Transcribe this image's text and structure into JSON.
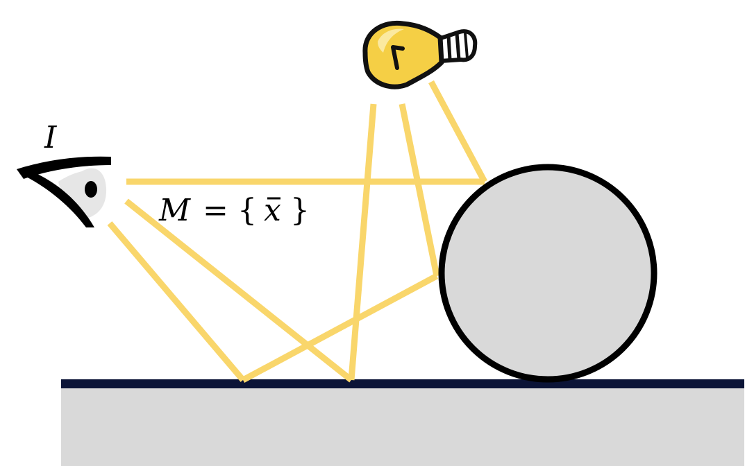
{
  "labels": {
    "image": "I",
    "measurement_var": "M",
    "equals": "=",
    "brace_open": "{",
    "point_var": "x",
    "overbar": "̄",
    "brace_close": "}"
  },
  "colors": {
    "ray": "#f9d66b",
    "ground_fill": "#d9d9d9",
    "ground_edge": "#0b1437",
    "sphere_fill": "#d9d9d9",
    "sphere_outline": "#000000",
    "bulb_glass": "#f5cf45",
    "bulb_highlight": "#fbe9a0",
    "bulb_outline": "#111111",
    "bulb_cap": "#ffffff",
    "eye_white": "#e6e6e6",
    "eye_outline": "#000000"
  },
  "icons": {
    "viewer": "eye-icon",
    "light": "light-bulb-icon"
  }
}
